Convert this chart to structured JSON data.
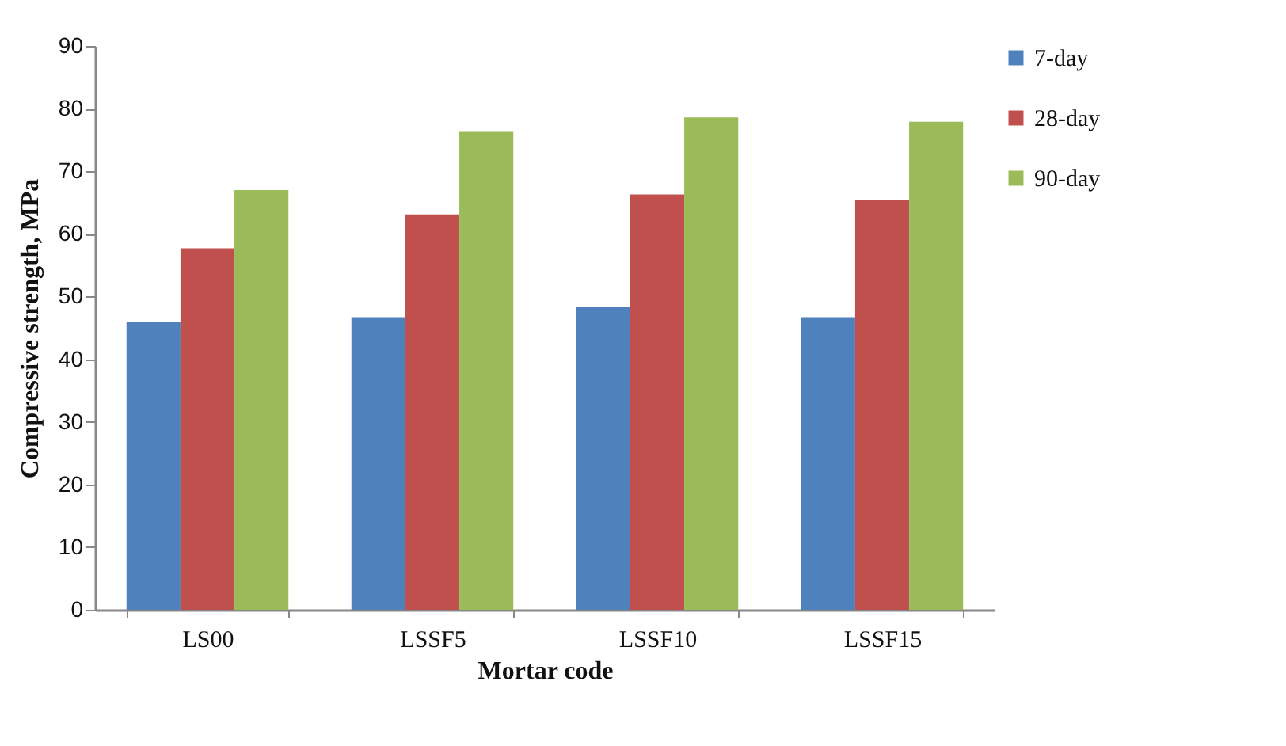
{
  "chart_data": {
    "type": "bar",
    "xlabel": "Mortar code",
    "ylabel": "Compressive strength, MPa",
    "categories": [
      "LS00",
      "LSSF5",
      "LSSF10",
      "LSSF15"
    ],
    "series": [
      {
        "name": "7-day",
        "color": "#4f81bd",
        "values": [
          46,
          46.7,
          48.3,
          46.7
        ]
      },
      {
        "name": "28-day",
        "color": "#c0504d",
        "values": [
          57.7,
          63.1,
          66.3,
          65.4
        ]
      },
      {
        "name": "90-day",
        "color": "#9bbb59",
        "values": [
          67,
          76.3,
          78.6,
          77.9
        ]
      }
    ],
    "ylim": [
      0,
      90
    ],
    "yticks": [
      0,
      10,
      20,
      30,
      40,
      50,
      60,
      70,
      80,
      90
    ],
    "grid": false,
    "legend": "right"
  }
}
